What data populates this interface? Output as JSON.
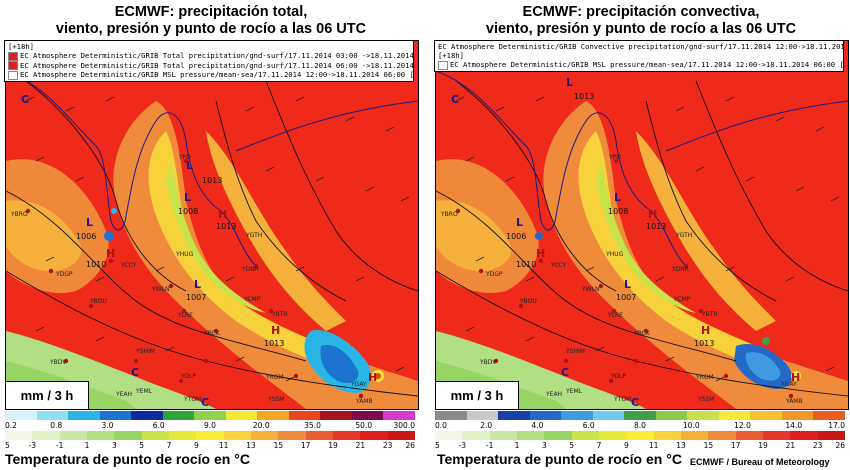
{
  "panels": [
    {
      "title_line1": "ECMWF: precipitación total,",
      "title_line2": "viento, presión y punto de rocío a las 06 UTC",
      "layers": [
        "[+18h]",
        "EC Atmosphere Deterministic/GRIB Total precipitation/gnd-surf/17.11.2014 03:00 ->18.11.2014 06:00 [+15h]",
        "EC Atmosphere Deterministic/GRIB Total precipitation/gnd-surf/17.11.2014 06:00 ->18.11.2014 06:00 [+18h]",
        "EC Atmosphere Deterministic/GRIB MSL pressure/mean-sea/17.11.2014 12:00->18.11.2014 06:00 [+18h]"
      ],
      "unit": "mm / 3 h",
      "precip_scale": [
        "0.2",
        "0.8",
        "3.0",
        "6.0",
        "9.0",
        "20.0",
        "35.0",
        "50.0",
        "300.0"
      ],
      "precip_colors": [
        "#d9f3fb",
        "#8ee0f5",
        "#29b6e6",
        "#1a74d0",
        "#0c2c9e",
        "#2ea43a",
        "#90d24c",
        "#f5e830",
        "#f5a623",
        "#e8471d",
        "#a8141c",
        "#7a0a4a",
        "#d63cc8"
      ],
      "pressure": {
        "highs": [
          {
            "label": "H",
            "value": "1013"
          },
          {
            "label": "H",
            "value": "1010"
          },
          {
            "label": "H",
            "value": "1013"
          },
          {
            "label": "H",
            "value": ""
          }
        ],
        "lows": [
          {
            "label": "L",
            "value": "1006"
          },
          {
            "label": "L",
            "value": "1008"
          },
          {
            "label": "L",
            "value": "1013"
          },
          {
            "label": "L",
            "value": "1007"
          },
          {
            "label": "C",
            "value": ""
          },
          {
            "label": "C",
            "value": ""
          },
          {
            "label": "C",
            "value": ""
          }
        ]
      }
    },
    {
      "title_line1": "ECMWF: precipitación convectiva,",
      "title_line2": "viento, presión y punto de rocío a las 06 UTC",
      "layers": [
        "EC Atmosphere Deterministic/GRIB Convective precipitation/gnd-surf/17.11.2014 12:00->18.11.2014 06:00",
        "[+18h]",
        "EC Atmosphere Deterministic/GRIB MSL pressure/mean-sea/17.11.2014 12:00->18.11.2014 06:00 [+18h]"
      ],
      "unit": "mm / 3 h",
      "precip_scale": [
        "0.0",
        "2.0",
        "4.0",
        "6.0",
        "8.0",
        "10.0",
        "12.0",
        "14.0",
        "17.0"
      ],
      "precip_colors": [
        "#8a8a8a",
        "#c9c9c9",
        "#1b3fa8",
        "#2468c8",
        "#3f9be0",
        "#74c8ee",
        "#3ea14a",
        "#8acb4c",
        "#c9e04a",
        "#f5ea38",
        "#f7c230",
        "#f09a2a",
        "#e85e23"
      ],
      "pressure": {
        "highs": [
          {
            "label": "H",
            "value": "1013"
          },
          {
            "label": "H",
            "value": "1010"
          },
          {
            "label": "H",
            "value": "1013"
          },
          {
            "label": "H",
            "value": ""
          }
        ],
        "lows": [
          {
            "label": "L",
            "value": "1006"
          },
          {
            "label": "L",
            "value": "1008"
          },
          {
            "label": "L",
            "value": "1013"
          },
          {
            "label": "L",
            "value": "1007"
          },
          {
            "label": "C",
            "value": ""
          },
          {
            "label": "C",
            "value": ""
          },
          {
            "label": "C",
            "value": ""
          }
        ]
      }
    }
  ],
  "stations": [
    "YBRO",
    "YPD",
    "YHUG",
    "YCCY",
    "YWLN",
    "YDGP",
    "YBOU",
    "YDNR",
    "YLRE",
    "YBDV",
    "YCMP",
    "YBTR",
    "YBCK",
    "YEAH",
    "YROM",
    "YOLP",
    "YGTH",
    "YSSM",
    "YSHIM",
    "YTOM",
    "YAMB",
    "YGAY",
    "YEML"
  ],
  "dewpoint_scale": [
    "5",
    "-3",
    "-1",
    "1",
    "3",
    "5",
    "7",
    "9",
    "11",
    "13",
    "15",
    "17",
    "19",
    "21",
    "23",
    "26"
  ],
  "dewpoint_colors": [
    "#f2f7e8",
    "#e0f1c8",
    "#c9e8a6",
    "#b1df83",
    "#96d563",
    "#c8e24a",
    "#e5ea3a",
    "#f7ec36",
    "#f8d23a",
    "#f5b13b",
    "#f08b3b",
    "#ea5d33",
    "#e6382a",
    "#e02020",
    "#c81818"
  ],
  "bottom_title": "Temperatura de punto de rocío en °C",
  "credit": "ECMWF / Bureau of Meteorology"
}
